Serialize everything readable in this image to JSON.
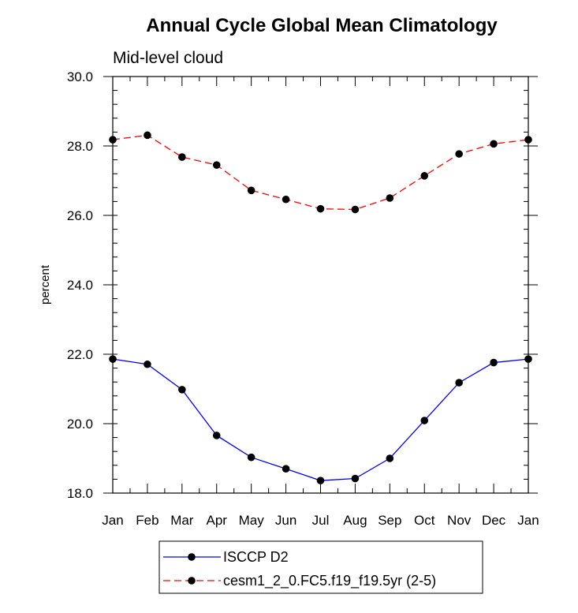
{
  "chart_data": {
    "type": "line",
    "title": "Annual Cycle Global Mean Climatology",
    "subtitle": "Mid-level cloud",
    "xlabel": "",
    "ylabel": "percent",
    "categories": [
      "Jan",
      "Feb",
      "Mar",
      "Apr",
      "May",
      "Jun",
      "Jul",
      "Aug",
      "Sep",
      "Oct",
      "Nov",
      "Dec",
      "Jan"
    ],
    "ylim": [
      18.0,
      30.0
    ],
    "yticks": [
      "18.0",
      "20.0",
      "22.0",
      "24.0",
      "26.0",
      "28.0",
      "30.0"
    ],
    "grid": false,
    "legend_position": "bottom-center",
    "series": [
      {
        "name": "ISCCP D2",
        "color": "#0000ff",
        "dash": "solid",
        "values": [
          21.86,
          21.71,
          20.98,
          19.66,
          19.03,
          18.7,
          18.36,
          18.42,
          19.0,
          20.09,
          21.18,
          21.76,
          21.86
        ]
      },
      {
        "name": "cesm1_2_0.FC5.f19_f19.5yr (2-5)",
        "color": "#ff0000",
        "dash": "dashed",
        "values": [
          28.18,
          28.31,
          27.68,
          27.45,
          26.72,
          26.46,
          26.19,
          26.17,
          26.5,
          27.14,
          27.77,
          28.06,
          28.18
        ]
      }
    ]
  }
}
